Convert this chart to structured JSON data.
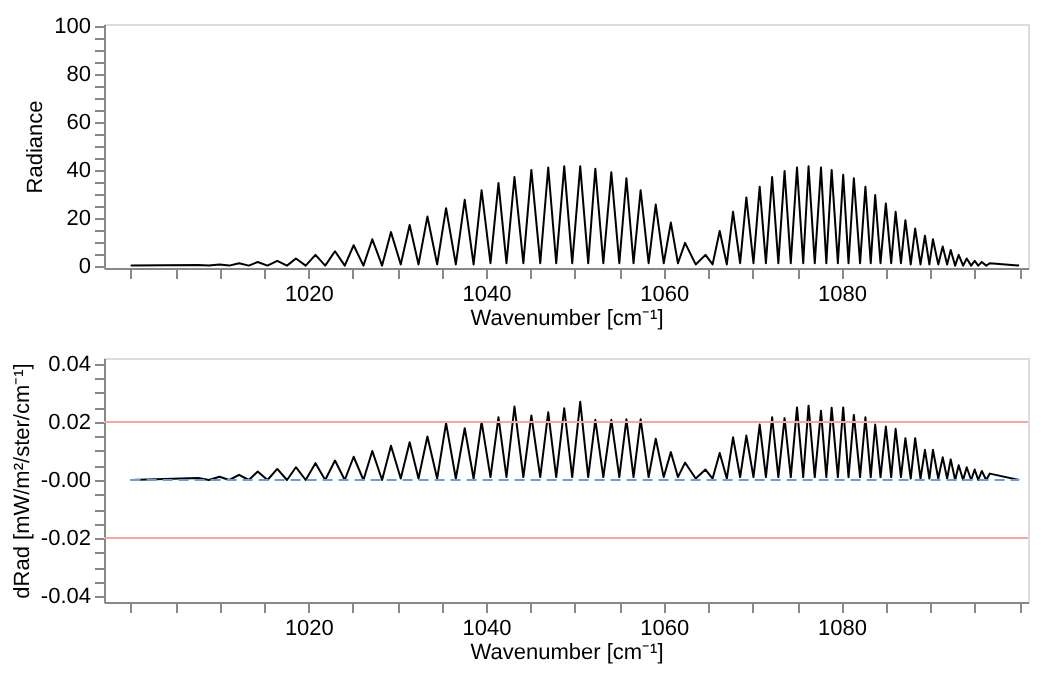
{
  "chart_data": [
    {
      "type": "line",
      "xlabel": "Wavenumber [cm⁻¹]",
      "ylabel": "Radiance",
      "grid": false,
      "xlim": [
        997,
        1101
      ],
      "xticks": [
        {
          "value": 1000,
          "label": null
        },
        {
          "value": 1005,
          "label": null
        },
        {
          "value": 1010,
          "label": null
        },
        {
          "value": 1015,
          "label": null
        },
        1020,
        {
          "value": 1025,
          "label": null
        },
        {
          "value": 1030,
          "label": null
        },
        {
          "value": 1035,
          "label": null
        },
        1040,
        {
          "value": 1045,
          "label": null
        },
        {
          "value": 1050,
          "label": null
        },
        {
          "value": 1055,
          "label": null
        },
        1060,
        {
          "value": 1065,
          "label": null
        },
        {
          "value": 1070,
          "label": null
        },
        {
          "value": 1075,
          "label": null
        },
        1080,
        {
          "value": 1085,
          "label": null
        },
        {
          "value": 1090,
          "label": null
        },
        {
          "value": 1095,
          "label": null
        },
        {
          "value": 1100,
          "label": null
        }
      ],
      "ylim": [
        -1,
        101
      ],
      "yticks": [
        0,
        {
          "value": 5,
          "label": null
        },
        {
          "value": 10,
          "label": null
        },
        {
          "value": 15,
          "label": null
        },
        20,
        {
          "value": 25,
          "label": null
        },
        {
          "value": 30,
          "label": null
        },
        {
          "value": 35,
          "label": null
        },
        40,
        {
          "value": 45,
          "label": null
        },
        {
          "value": 50,
          "label": null
        },
        {
          "value": 55,
          "label": null
        },
        60,
        {
          "value": 65,
          "label": null
        },
        {
          "value": 70,
          "label": null
        },
        {
          "value": 75,
          "label": null
        },
        80,
        {
          "value": 85,
          "label": null
        },
        {
          "value": 90,
          "label": null
        },
        {
          "value": 95,
          "label": null
        },
        100
      ],
      "x": [
        1000,
        1007.6,
        1008.8,
        1010.0,
        1011.1,
        1012.2,
        1013.3,
        1014.3,
        1015.4,
        1016.5,
        1017.6,
        1018.6,
        1019.7,
        1020.8,
        1021.9,
        1023.0,
        1024.1,
        1025.1,
        1026.2,
        1027.2,
        1028.3,
        1029.3,
        1030.4,
        1031.4,
        1032.4,
        1033.4,
        1034.5,
        1035.5,
        1036.6,
        1037.6,
        1038.6,
        1039.5,
        1040.5,
        1041.4,
        1042.3,
        1043.2,
        1044.2,
        1045.1,
        1046.1,
        1047.0,
        1047.9,
        1048.8,
        1049.7,
        1050.6,
        1051.5,
        1052.3,
        1053.2,
        1054.1,
        1055.0,
        1055.8,
        1056.6,
        1057.4,
        1058.3,
        1059.1,
        1060.0,
        1060.8,
        1061.6,
        1062.4,
        1063.6,
        1064.7,
        1065.5,
        1066.3,
        1067.1,
        1067.8,
        1068.6,
        1069.3,
        1070.1,
        1070.8,
        1071.5,
        1072.2,
        1072.9,
        1073.6,
        1074.3,
        1075.0,
        1075.7,
        1076.3,
        1077.0,
        1077.7,
        1078.3,
        1078.9,
        1079.6,
        1080.2,
        1080.8,
        1081.4,
        1082.1,
        1082.7,
        1083.3,
        1083.8,
        1084.4,
        1085.0,
        1085.6,
        1086.1,
        1086.7,
        1087.2,
        1087.8,
        1088.3,
        1088.9,
        1089.4,
        1089.9,
        1090.3,
        1090.9,
        1091.4,
        1091.9,
        1092.3,
        1092.8,
        1093.2,
        1093.7,
        1094.1,
        1094.6,
        1095.0,
        1095.4,
        1095.8,
        1096.3,
        1096.7,
        1100
      ],
      "series": [
        {
          "color": "#000000",
          "line_style": "solid",
          "values": [
            0,
            0.3,
            0,
            0.5,
            0,
            1,
            0,
            1.5,
            0,
            2,
            0,
            3,
            0,
            4.5,
            0,
            6,
            0,
            8.5,
            0,
            11,
            0,
            14,
            0.5,
            17,
            0.5,
            20.5,
            0.5,
            24,
            0.5,
            27.5,
            0.5,
            31.5,
            1,
            34.5,
            1,
            37,
            1,
            40,
            1,
            41,
            1,
            41.5,
            1,
            41.5,
            1,
            40.5,
            1,
            39,
            1,
            36.5,
            1,
            31.5,
            1,
            25.5,
            1,
            18,
            1,
            9.5,
            0.5,
            4.5,
            0.5,
            14.5,
            0.5,
            22.5,
            1,
            28.5,
            1,
            33,
            1,
            37,
            1,
            39.5,
            1,
            41,
            1,
            41.5,
            1,
            41,
            1,
            40,
            1,
            38,
            1,
            36.5,
            1,
            33,
            1,
            29.5,
            1,
            26,
            1,
            22.5,
            1,
            19,
            0.5,
            15.5,
            0.5,
            12.5,
            0.5,
            11,
            0.5,
            8,
            0.5,
            6.5,
            0,
            4.5,
            0,
            3,
            0,
            2,
            0,
            1.5,
            0,
            1,
            0
          ]
        }
      ]
    },
    {
      "type": "line",
      "xlabel": "Wavenumber [cm⁻¹]",
      "ylabel": "dRad [mW/m²/ster/cm⁻¹]",
      "grid": false,
      "xlim": [
        997,
        1101
      ],
      "xticks": [
        {
          "value": 1000,
          "label": null
        },
        {
          "value": 1005,
          "label": null
        },
        {
          "value": 1010,
          "label": null
        },
        {
          "value": 1015,
          "label": null
        },
        1020,
        {
          "value": 1025,
          "label": null
        },
        {
          "value": 1030,
          "label": null
        },
        {
          "value": 1035,
          "label": null
        },
        1040,
        {
          "value": 1045,
          "label": null
        },
        {
          "value": 1050,
          "label": null
        },
        {
          "value": 1055,
          "label": null
        },
        1060,
        {
          "value": 1065,
          "label": null
        },
        {
          "value": 1070,
          "label": null
        },
        {
          "value": 1075,
          "label": null
        },
        1080,
        {
          "value": 1085,
          "label": null
        },
        {
          "value": 1090,
          "label": null
        },
        {
          "value": 1095,
          "label": null
        },
        {
          "value": 1100,
          "label": null
        }
      ],
      "ylim": [
        -0.042,
        0.042
      ],
      "yticks": [
        {
          "value": -0.04,
          "label": "-0.04"
        },
        {
          "value": -0.035,
          "label": null
        },
        {
          "value": -0.03,
          "label": null
        },
        {
          "value": -0.025,
          "label": null
        },
        {
          "value": -0.02,
          "label": "-0.02"
        },
        {
          "value": -0.015,
          "label": null
        },
        {
          "value": -0.01,
          "label": null
        },
        {
          "value": -0.005,
          "label": null
        },
        {
          "value": 0,
          "label": "-0.00"
        },
        {
          "value": 0.005,
          "label": null
        },
        {
          "value": 0.01,
          "label": null
        },
        {
          "value": 0.015,
          "label": null
        },
        {
          "value": 0.02,
          "label": "0.02"
        },
        {
          "value": 0.025,
          "label": null
        },
        {
          "value": 0.03,
          "label": null
        },
        {
          "value": 0.035,
          "label": null
        },
        {
          "value": 0.04,
          "label": "0.04"
        }
      ],
      "ref_lines": [
        {
          "axis": "y",
          "value": 0.02,
          "color": "#f4a8a0",
          "line_style": "solid"
        },
        {
          "axis": "y",
          "value": -0.02,
          "color": "#f4a8a0",
          "line_style": "solid"
        }
      ],
      "x": [
        1000,
        1007.6,
        1008.8,
        1010.0,
        1011.1,
        1012.2,
        1013.3,
        1014.3,
        1015.4,
        1016.5,
        1017.6,
        1018.6,
        1019.7,
        1020.8,
        1021.9,
        1023.0,
        1024.1,
        1025.1,
        1026.2,
        1027.2,
        1028.3,
        1029.3,
        1030.4,
        1031.4,
        1032.4,
        1033.4,
        1034.5,
        1035.5,
        1036.6,
        1037.6,
        1038.6,
        1039.5,
        1040.5,
        1041.4,
        1042.3,
        1043.2,
        1044.2,
        1045.1,
        1046.1,
        1047.0,
        1047.9,
        1048.8,
        1049.7,
        1050.6,
        1051.5,
        1052.3,
        1053.2,
        1054.1,
        1055.0,
        1055.8,
        1056.6,
        1057.4,
        1058.3,
        1059.1,
        1060.0,
        1060.8,
        1061.6,
        1062.4,
        1063.6,
        1064.7,
        1065.5,
        1066.3,
        1067.1,
        1067.8,
        1068.6,
        1069.3,
        1070.1,
        1070.8,
        1071.5,
        1072.2,
        1072.9,
        1073.6,
        1074.3,
        1075.0,
        1075.7,
        1076.3,
        1077.0,
        1077.7,
        1078.3,
        1078.9,
        1079.6,
        1080.2,
        1080.8,
        1081.4,
        1082.1,
        1082.7,
        1083.3,
        1083.8,
        1084.4,
        1085.0,
        1085.6,
        1086.1,
        1086.7,
        1087.2,
        1087.8,
        1088.3,
        1088.9,
        1089.4,
        1089.9,
        1090.3,
        1090.9,
        1091.4,
        1091.9,
        1092.3,
        1092.8,
        1093.2,
        1093.7,
        1094.1,
        1094.6,
        1095.0,
        1095.4,
        1095.8,
        1096.3,
        1096.7,
        1100
      ],
      "series": [
        {
          "color": "#000000",
          "line_style": "solid",
          "values": [
            0,
            0.0007,
            0,
            0.0011,
            0,
            0.0018,
            0,
            0.0029,
            0,
            0.0038,
            0,
            0.0044,
            0,
            0.0058,
            0,
            0.0067,
            0,
            0.008,
            0,
            0.01,
            0,
            0.0118,
            0.0005,
            0.013,
            0.0005,
            0.015,
            0.0005,
            0.0196,
            0.0005,
            0.0178,
            0.0005,
            0.02,
            0.001,
            0.0216,
            0.001,
            0.0253,
            0.001,
            0.0222,
            0.001,
            0.0233,
            0.001,
            0.0247,
            0.001,
            0.0269,
            0.001,
            0.0207,
            0.001,
            0.0207,
            0.001,
            0.0209,
            0.001,
            0.0209,
            0.001,
            0.0142,
            0.001,
            0.0096,
            0.001,
            0.006,
            0.0005,
            0.0036,
            0.0005,
            0.0093,
            0.0005,
            0.0147,
            0.001,
            0.0153,
            0.001,
            0.0191,
            0.001,
            0.0216,
            0.001,
            0.0213,
            0.001,
            0.025,
            0.001,
            0.0256,
            0.001,
            0.0238,
            0.001,
            0.0249,
            0.001,
            0.025,
            0.001,
            0.0224,
            0.001,
            0.0216,
            0.001,
            0.0191,
            0.001,
            0.0184,
            0.001,
            0.0176,
            0.001,
            0.0144,
            0.0005,
            0.0144,
            0.0005,
            0.0104,
            0.0005,
            0.0104,
            0.0005,
            0.0078,
            0.0005,
            0.0071,
            0,
            0.0051,
            0,
            0.0044,
            0,
            0.0036,
            0,
            0.0031,
            0,
            0.0022,
            0
          ]
        },
        {
          "color": "#6f97e8",
          "line_style": "dashed",
          "x": [
            1000,
            1100
          ],
          "values": [
            0,
            0
          ]
        }
      ]
    }
  ]
}
